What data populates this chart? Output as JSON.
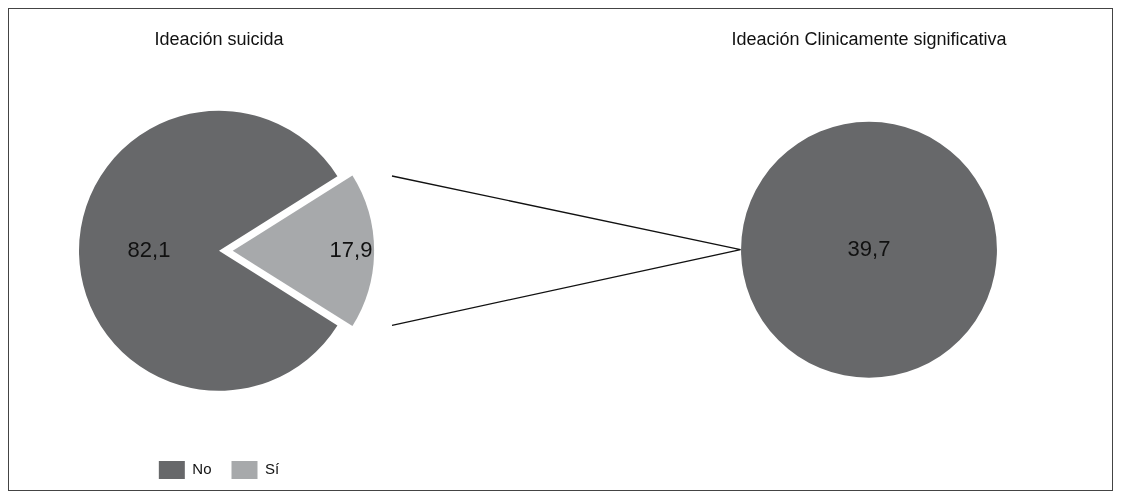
{
  "chart_data": [
    {
      "type": "pie",
      "title": "Ideación suicida",
      "categories": [
        "No",
        "Sí"
      ],
      "values": [
        82.1,
        17.9
      ],
      "value_labels": [
        "82,1",
        "17,9"
      ],
      "colors": [
        "#67686a",
        "#a7a9ab"
      ],
      "legend": "bottom"
    },
    {
      "type": "pie",
      "title": "Ideación Clinicamente significativa",
      "categories": [
        null
      ],
      "values": [
        39.7
      ],
      "value_labels": [
        "39,7"
      ],
      "colors": [
        "#67686a"
      ]
    }
  ]
}
